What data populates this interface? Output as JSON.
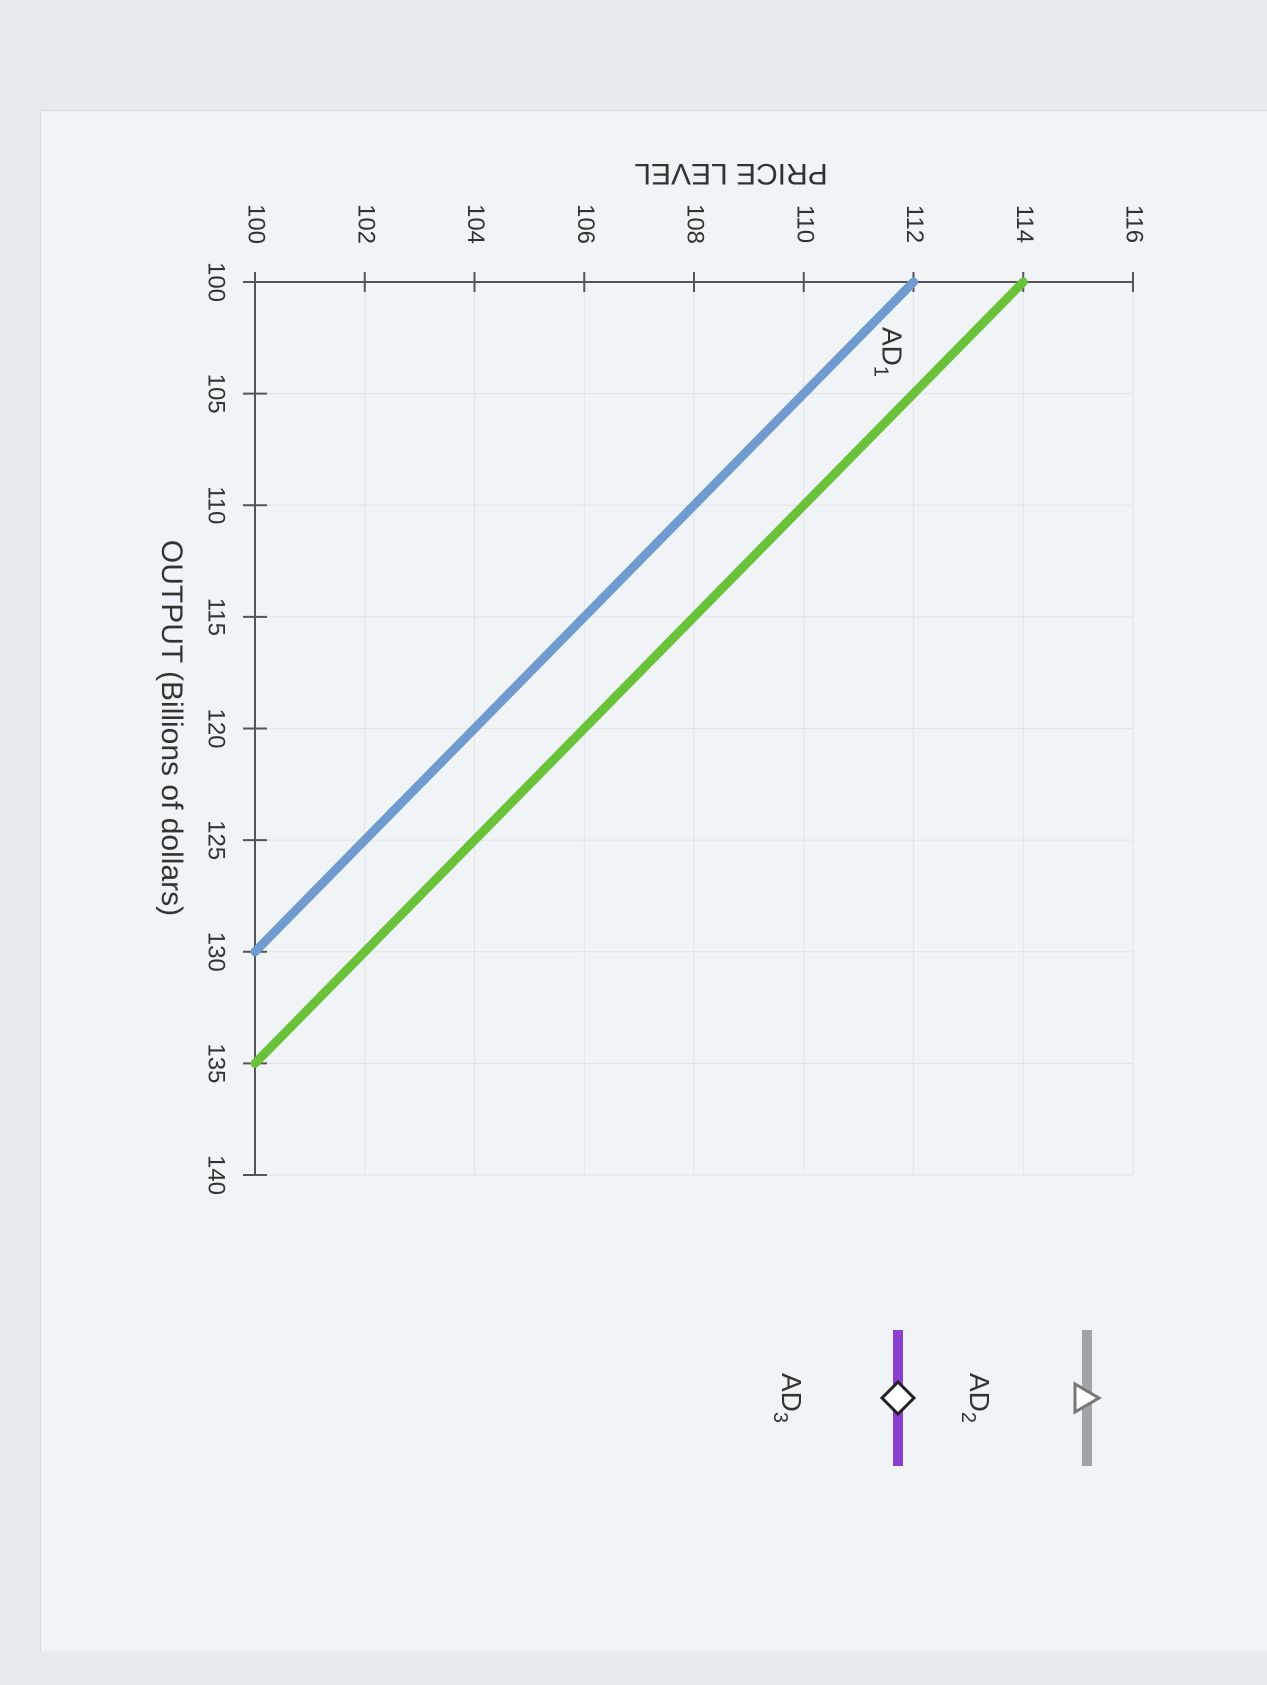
{
  "chart_data": {
    "type": "line",
    "ylabel": "PRICE LEVEL",
    "xlabel": "OUTPUT (Billions of dollars)",
    "xlim": [
      100,
      140
    ],
    "ylim": [
      100,
      116
    ],
    "x_ticks": [
      "100",
      "105",
      "110",
      "115",
      "120",
      "125",
      "130",
      "135",
      "140"
    ],
    "y_ticks": [
      "100",
      "102",
      "104",
      "106",
      "108",
      "110",
      "112",
      "114",
      "116"
    ],
    "grid": true,
    "series": [
      {
        "name_main": "AD",
        "name_sub": "1",
        "color": "#6f9bd1",
        "points": [
          [
            100,
            112
          ],
          [
            130,
            100
          ]
        ]
      },
      {
        "color": "#6ac13a",
        "points": [
          [
            100,
            114
          ],
          [
            135,
            100
          ]
        ]
      }
    ],
    "legend": [
      {
        "main": "AD",
        "sub": "2",
        "color": "#a0a4a7",
        "marker": "triangle"
      },
      {
        "main": "AD",
        "sub": "3",
        "color": "#8a3fcf",
        "marker": "diamond"
      }
    ]
  }
}
